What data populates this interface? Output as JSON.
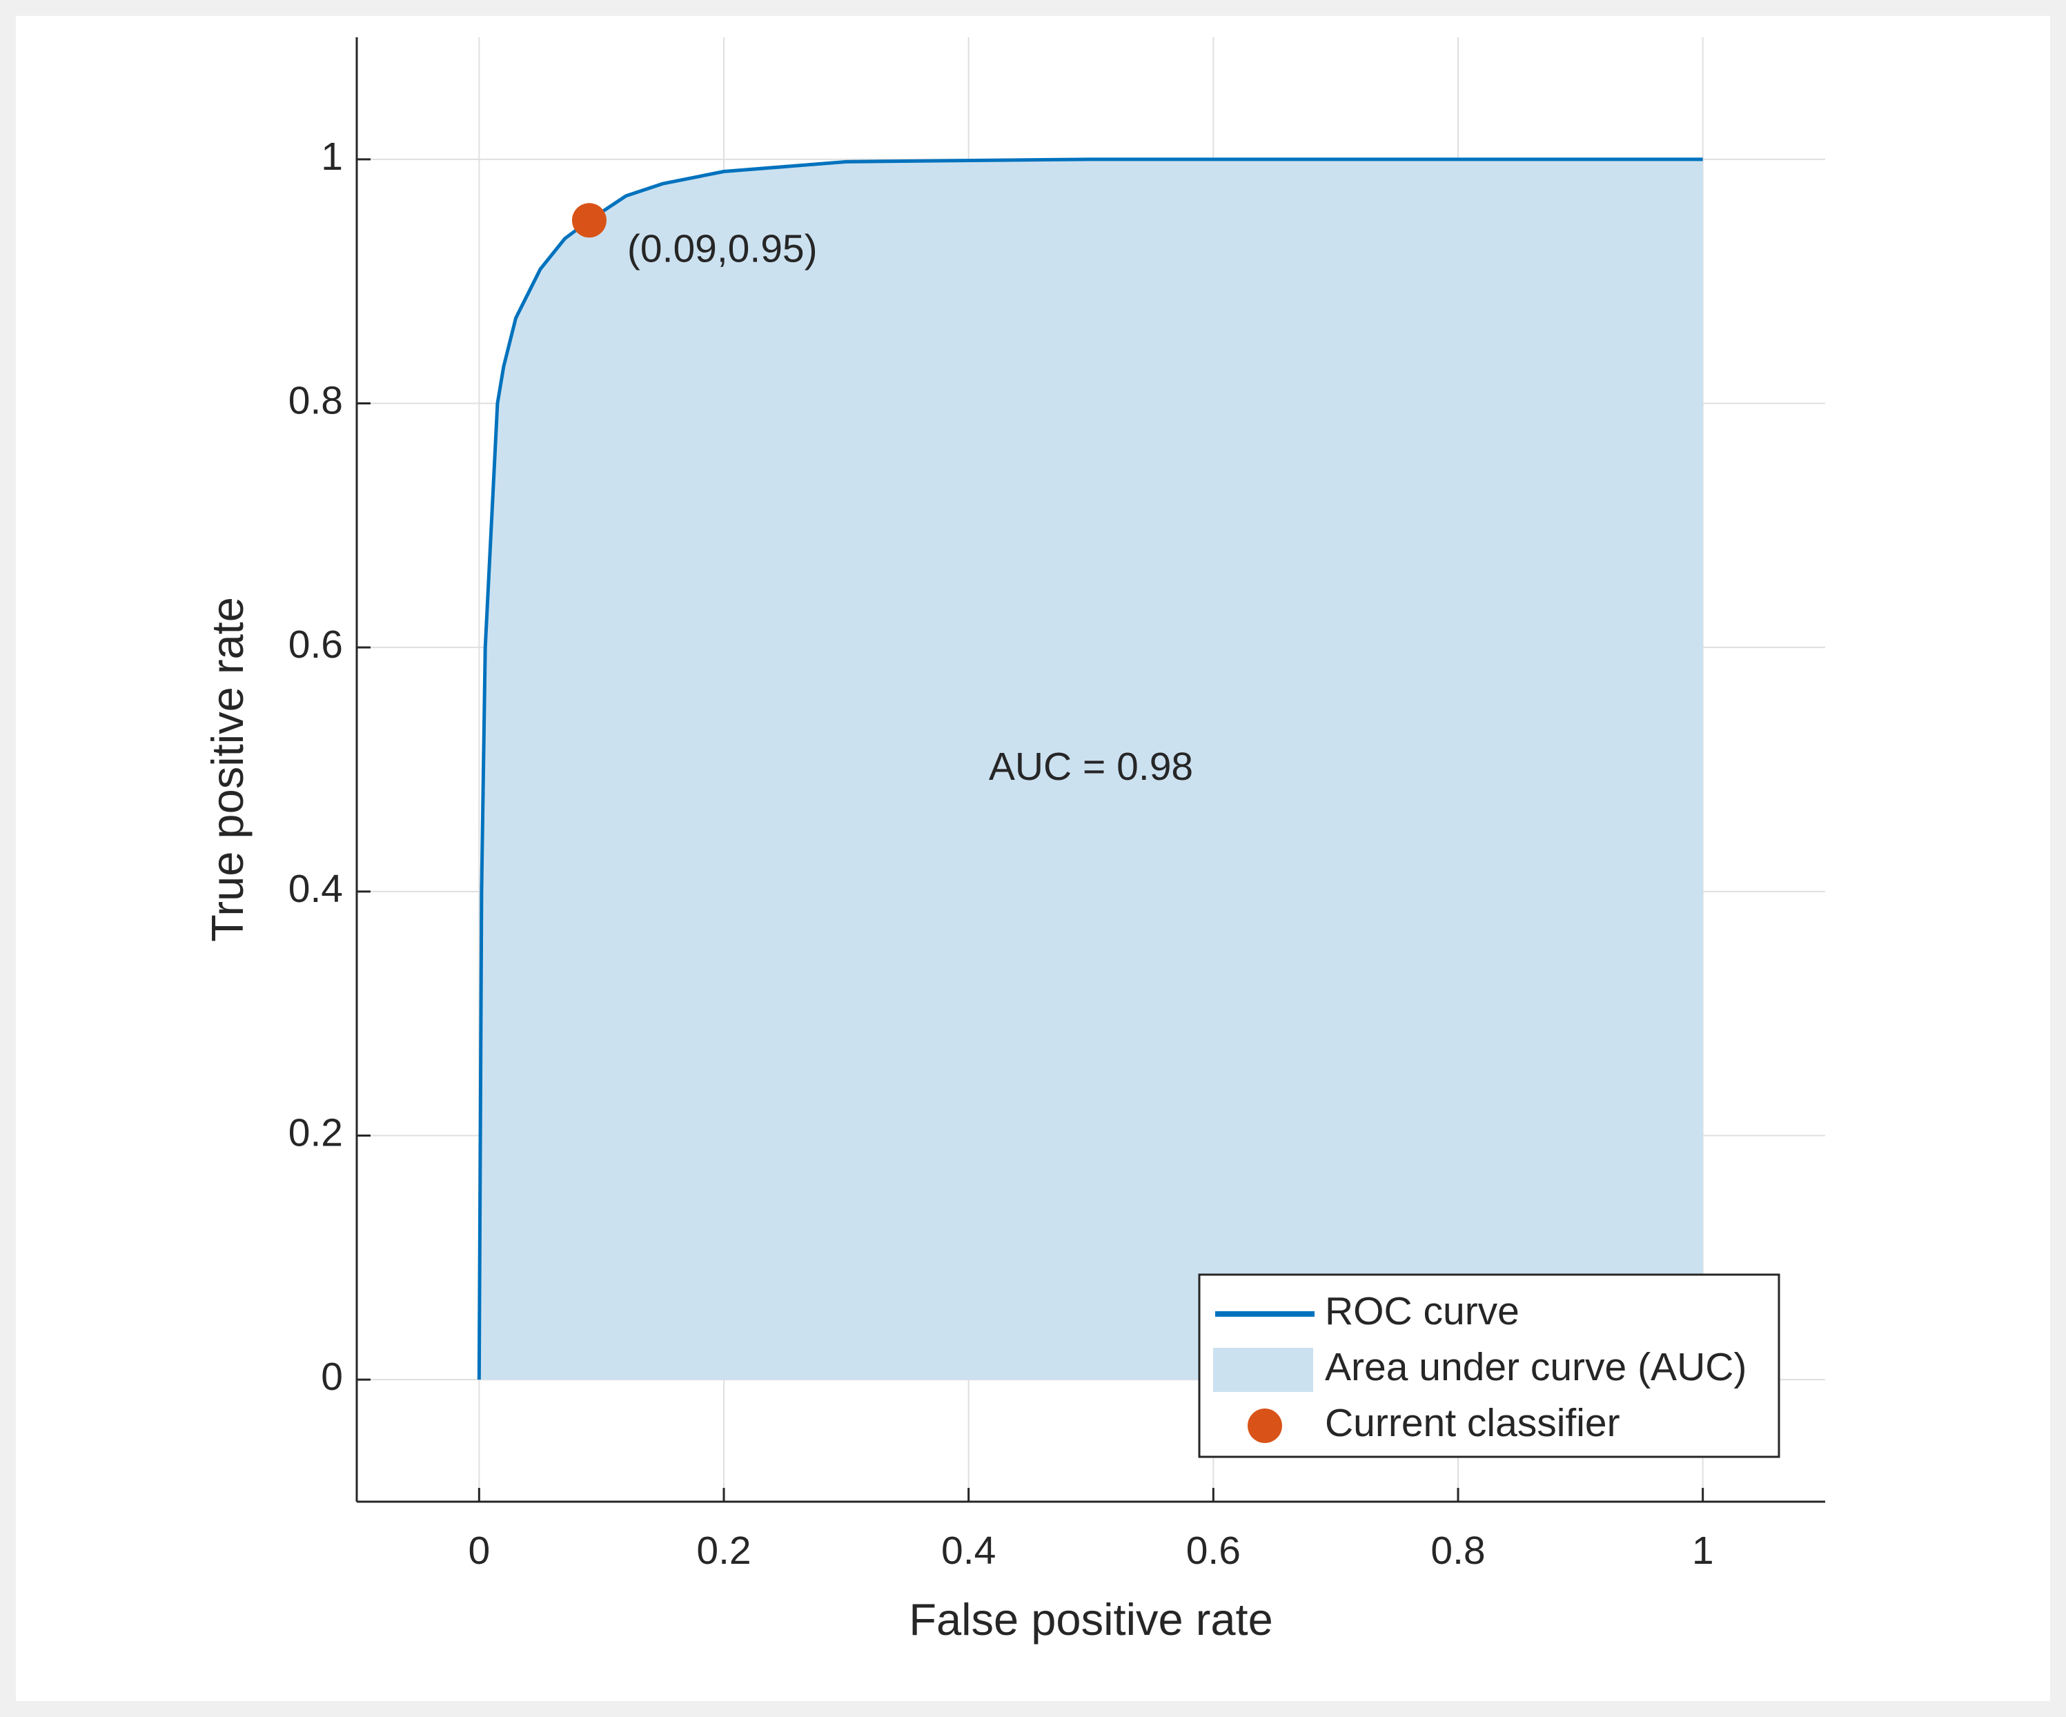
{
  "chart_data": {
    "type": "roc",
    "xlabel": "False positive rate",
    "ylabel": "True positive rate",
    "x": [
      0,
      0.001,
      0.002,
      0.005,
      0.01,
      0.015,
      0.02,
      0.03,
      0.05,
      0.07,
      0.09,
      0.12,
      0.15,
      0.2,
      0.3,
      0.5,
      1
    ],
    "series": [
      {
        "name": "ROC curve",
        "color": "#0072bd",
        "kind": "line",
        "values": [
          0,
          0.2,
          0.4,
          0.6,
          0.7,
          0.8,
          0.83,
          0.87,
          0.91,
          0.935,
          0.95,
          0.97,
          0.98,
          0.99,
          0.998,
          1,
          1
        ]
      },
      {
        "name": "Area under curve (AUC)",
        "color": "#cce1f0",
        "kind": "area",
        "values": [
          0,
          0.2,
          0.4,
          0.6,
          0.7,
          0.8,
          0.83,
          0.87,
          0.91,
          0.935,
          0.95,
          0.97,
          0.98,
          0.99,
          0.998,
          1,
          1
        ]
      }
    ],
    "points": [
      {
        "name": "Current classifier",
        "color": "#d95319",
        "x": 0.09,
        "y": 0.95,
        "label": "(0.09,0.95)"
      }
    ],
    "annotation": "AUC = 0.98",
    "xlim": [
      -0.1,
      1.1
    ],
    "ylim": [
      -0.1,
      1.1
    ],
    "xticks": [
      0,
      0.2,
      0.4,
      0.6,
      0.8,
      1
    ],
    "yticks": [
      0,
      0.2,
      0.4,
      0.6,
      0.8,
      1
    ],
    "grid": true,
    "legend": "lower right"
  }
}
